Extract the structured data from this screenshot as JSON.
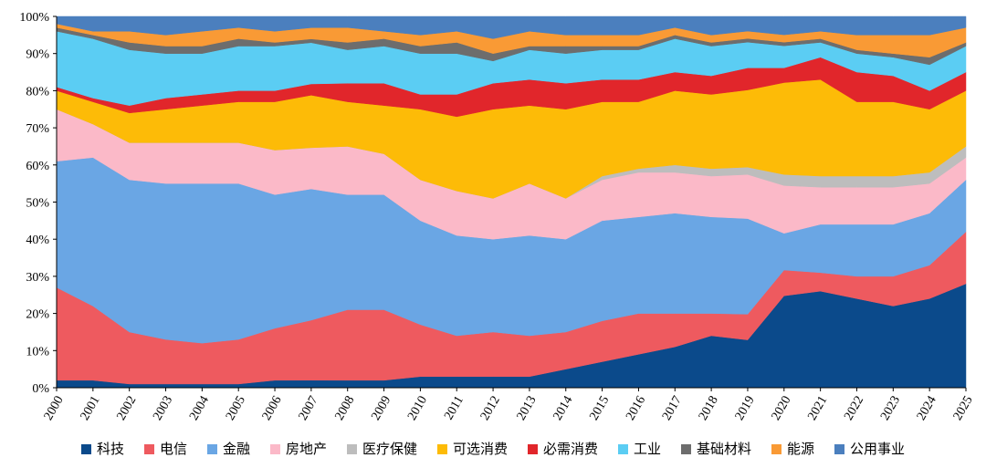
{
  "chart_data": {
    "type": "area",
    "stacked": true,
    "normalized": true,
    "x": [
      "2000",
      "2001",
      "2002",
      "2003",
      "2004",
      "2005",
      "2006",
      "2007",
      "2008",
      "2009",
      "2010",
      "2011",
      "2012",
      "2013",
      "2014",
      "2015",
      "2016",
      "2017",
      "2018",
      "2019",
      "2020",
      "2021",
      "2022",
      "2023",
      "2024",
      "2025"
    ],
    "ylim": [
      0,
      100
    ],
    "yticks": [
      "0%",
      "10%",
      "20%",
      "30%",
      "40%",
      "50%",
      "60%",
      "70%",
      "80%",
      "90%",
      "100%"
    ],
    "grid": false,
    "legend_position": "bottom",
    "series": [
      {
        "name": "科技",
        "color": "#0b4a8b",
        "values": [
          2,
          2,
          1,
          1,
          1,
          1,
          2,
          2,
          2,
          2,
          3,
          3,
          3,
          3,
          5,
          7,
          9,
          11,
          14,
          13,
          25,
          26,
          24,
          22,
          24,
          28
        ]
      },
      {
        "name": "电信",
        "color": "#ee5a5f",
        "values": [
          25,
          20,
          14,
          12,
          11,
          12,
          14,
          16,
          19,
          19,
          14,
          11,
          12,
          11,
          10,
          11,
          11,
          9,
          6,
          7,
          7,
          5,
          6,
          8,
          9,
          14
        ]
      },
      {
        "name": "金融",
        "color": "#6aa6e4",
        "values": [
          34,
          40,
          41,
          42,
          43,
          42,
          36,
          35,
          31,
          31,
          28,
          27,
          25,
          27,
          25,
          27,
          26,
          27,
          26,
          26,
          10,
          13,
          14,
          14,
          14,
          14
        ]
      },
      {
        "name": "房地产",
        "color": "#fbb9c8",
        "values": [
          14,
          9,
          10,
          11,
          11,
          11,
          12,
          11,
          13,
          11,
          11,
          12,
          11,
          14,
          11,
          11,
          12,
          11,
          11,
          12,
          13,
          10,
          10,
          10,
          8,
          6
        ]
      },
      {
        "name": "医疗保健",
        "color": "#bdbdbd",
        "values": [
          0,
          0,
          0,
          0,
          0,
          0,
          0,
          0,
          0,
          0,
          0,
          0,
          0,
          0,
          0,
          1,
          1,
          2,
          2,
          2,
          3,
          3,
          3,
          3,
          3,
          3
        ]
      },
      {
        "name": "可选消费",
        "color": "#fdbb07",
        "values": [
          5,
          6,
          8,
          9,
          10,
          11,
          13,
          14,
          12,
          13,
          19,
          20,
          24,
          21,
          24,
          20,
          18,
          20,
          20,
          21,
          25,
          26,
          20,
          20,
          17,
          15
        ]
      },
      {
        "name": "必需消费",
        "color": "#e1262b",
        "values": [
          1,
          1,
          2,
          3,
          3,
          3,
          3,
          3,
          5,
          6,
          4,
          6,
          7,
          7,
          7,
          6,
          6,
          5,
          5,
          6,
          4,
          6,
          8,
          7,
          5,
          5
        ]
      },
      {
        "name": "工业",
        "color": "#5bcdf3",
        "values": [
          15,
          16,
          15,
          12,
          11,
          12,
          12,
          11,
          9,
          10,
          11,
          11,
          6,
          8,
          8,
          8,
          8,
          9,
          8,
          7,
          6,
          4,
          5,
          5,
          7,
          7
        ]
      },
      {
        "name": "基础材料",
        "color": "#6d6d6d",
        "values": [
          1,
          1,
          2,
          2,
          2,
          2,
          1,
          1,
          2,
          2,
          2,
          3,
          2,
          1,
          2,
          1,
          1,
          1,
          1,
          1,
          1,
          1,
          1,
          1,
          2,
          1
        ]
      },
      {
        "name": "能源",
        "color": "#f99a35",
        "values": [
          1,
          1,
          3,
          3,
          4,
          3,
          3,
          3,
          4,
          2,
          3,
          3,
          4,
          4,
          3,
          3,
          3,
          2,
          2,
          2,
          2,
          2,
          4,
          5,
          6,
          4
        ]
      },
      {
        "name": "公用事业",
        "color": "#4b7fbe",
        "values": [
          2,
          4,
          4,
          5,
          4,
          3,
          4,
          3,
          3,
          4,
          5,
          4,
          6,
          4,
          5,
          5,
          5,
          3,
          5,
          4,
          5,
          4,
          5,
          5,
          5,
          3
        ]
      }
    ]
  }
}
